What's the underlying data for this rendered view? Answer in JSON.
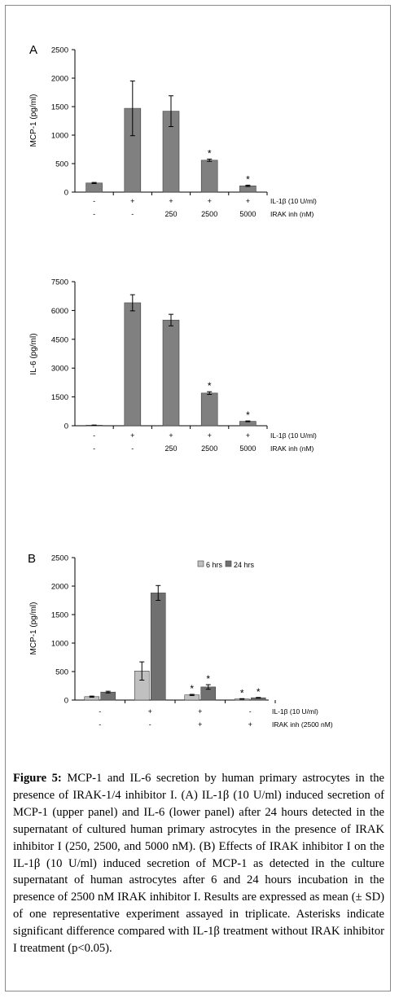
{
  "chart_data": [
    {
      "type": "bar",
      "panel_label": "A",
      "ylabel": "MCP-1 (pg/ml)",
      "ylim": [
        0,
        2500
      ],
      "yticks": [
        "0",
        "500",
        "1000",
        "1500",
        "2000",
        "2500"
      ],
      "categories": [
        "1",
        "2",
        "3",
        "4",
        "5"
      ],
      "values": [
        160,
        1470,
        1420,
        560,
        110
      ],
      "errors": [
        10,
        480,
        270,
        20,
        12
      ],
      "significant": [
        false,
        false,
        false,
        true,
        true
      ],
      "star": "*",
      "row_labels": [
        "IL-1β (10 U/ml)",
        "IRAK inh (nM)"
      ],
      "row1": [
        "-",
        "+",
        "+",
        "+",
        "+"
      ],
      "row2": [
        "-",
        "-",
        "250",
        "2500",
        "5000"
      ],
      "colors": {
        "bar": "#808080"
      }
    },
    {
      "type": "bar",
      "ylabel": "IL-6 (pg/ml)",
      "ylim": [
        0,
        7500
      ],
      "yticks": [
        "0",
        "1500",
        "3000",
        "4500",
        "6000",
        "7500"
      ],
      "categories": [
        "1",
        "2",
        "3",
        "4",
        "5"
      ],
      "values": [
        30,
        6400,
        5500,
        1700,
        230
      ],
      "errors": [
        5,
        420,
        300,
        70,
        20
      ],
      "significant": [
        false,
        false,
        false,
        true,
        true
      ],
      "star": "*",
      "row_labels": [
        "IL-1β (10 U/ml)",
        "IRAK inh (nM)"
      ],
      "row1": [
        "-",
        "+",
        "+",
        "+",
        "+"
      ],
      "row2": [
        "-",
        "-",
        "250",
        "2500",
        "5000"
      ],
      "colors": {
        "bar": "#808080"
      }
    },
    {
      "type": "bar",
      "panel_label": "B",
      "ylabel": "MCP-1 (pg/ml)",
      "ylim": [
        0,
        2500
      ],
      "yticks": [
        "0",
        "500",
        "1000",
        "1500",
        "2000",
        "2500"
      ],
      "categories": [
        "1",
        "2",
        "3",
        "4"
      ],
      "series": [
        {
          "name": "6 hrs",
          "values": [
            60,
            510,
            90,
            20
          ],
          "errors": [
            10,
            160,
            10,
            5
          ],
          "significant": [
            false,
            false,
            true,
            true
          ],
          "color": "#c0c0c0"
        },
        {
          "name": "24 hrs",
          "values": [
            140,
            1880,
            230,
            40
          ],
          "errors": [
            15,
            130,
            40,
            6
          ],
          "significant": [
            false,
            false,
            true,
            true
          ],
          "color": "#707070"
        }
      ],
      "legend_position": "top-right",
      "star": "*",
      "row_labels": [
        "IL-1β (10 U/ml)",
        "IRAK inh (2500 nM)"
      ],
      "row1": [
        "-",
        "+",
        "+",
        "-"
      ],
      "row2": [
        "-",
        "-",
        "+",
        "+"
      ]
    }
  ],
  "caption": {
    "label": "Figure 5:",
    "text": "MCP-1 and IL-6 secretion by human primary astrocytes in the presence of IRAK-1/4 inhibitor I. (A) IL-1β (10 U/ml) induced secretion of MCP-1 (upper panel) and IL-6 (lower panel) after 24 hours detected in the supernatant of cultured human primary astrocytes in the presence of IRAK inhibitor I (250, 2500, and 5000 nM). (B) Effects of IRAK inhibitor I on the IL-1β (10 U/ml) induced secretion of MCP-1 as detected in the culture supernatant of human astrocytes after 6 and 24 hours incubation in the presence of 2500 nM IRAK inhibitor I. Results are expressed as mean (± SD) of one representative experiment assayed in triplicate. Asterisks indicate significant difference compared with IL-1β treatment without IRAK inhibitor I treatment (p<0.05)."
  }
}
